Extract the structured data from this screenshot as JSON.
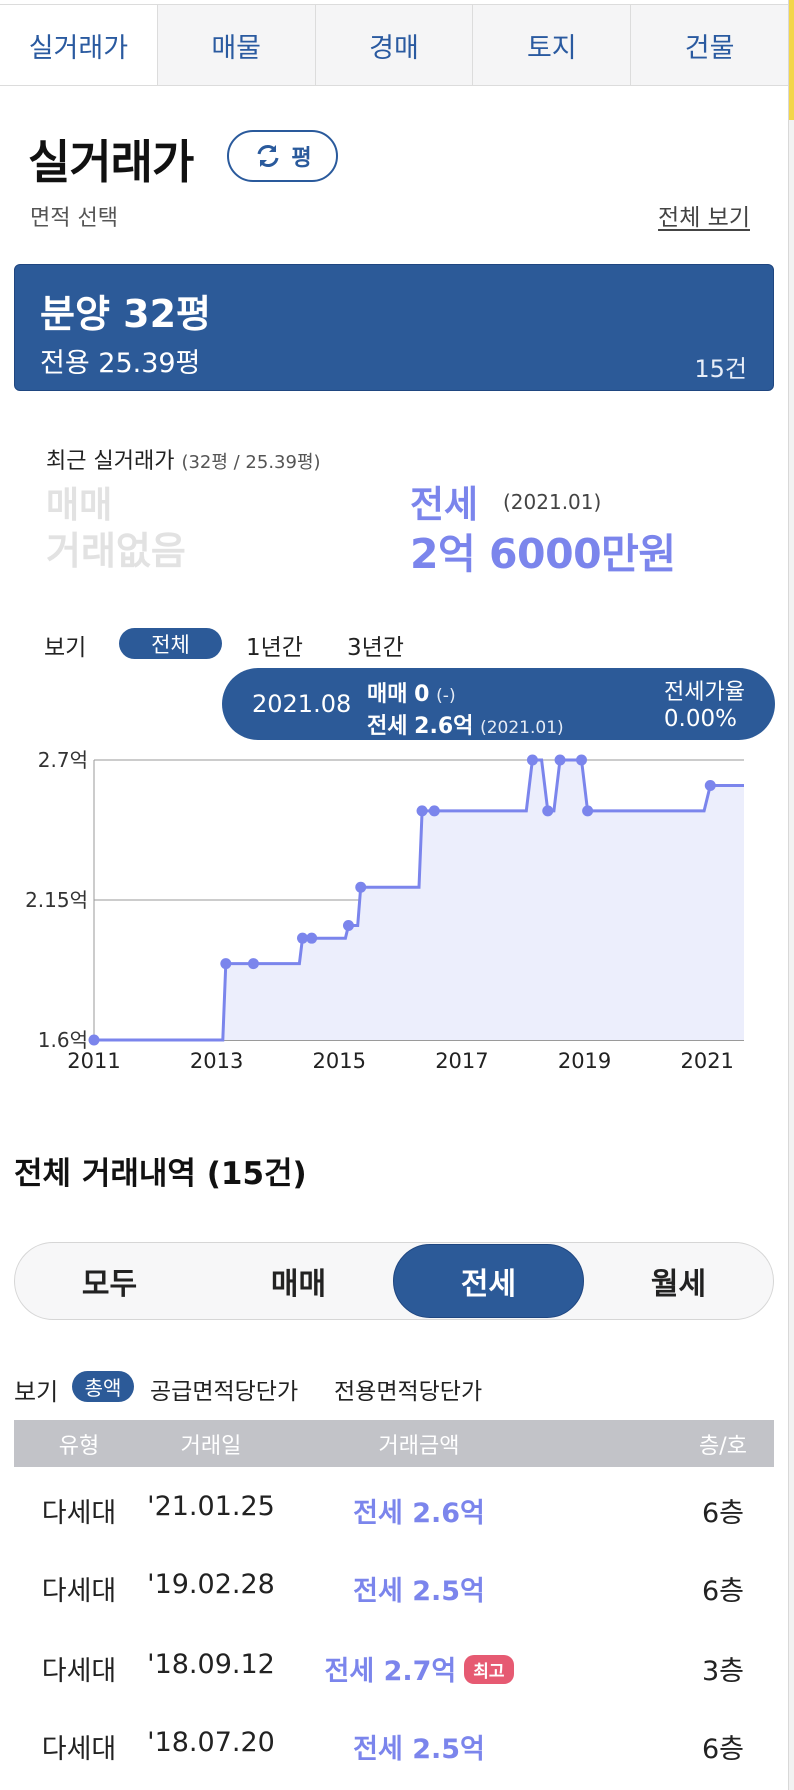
{
  "tabs": [
    "실거래가",
    "매물",
    "경매",
    "토지",
    "건물"
  ],
  "header": {
    "title": "실거래가",
    "unit_toggle": "평",
    "area_select_label": "면적 선택",
    "view_all": "전체 보기"
  },
  "area_card": {
    "main": "분양 32평",
    "sub": "전용 25.39평",
    "count": "15건"
  },
  "recent": {
    "label": "최근 실거래가",
    "area_note": "(32평 / 25.39평)",
    "sale_type": "매매",
    "sale_none": "거래없음",
    "jeonse_type": "전세",
    "jeonse_date": "(2021.01)",
    "jeonse_price": "2억 6000만원"
  },
  "period": {
    "label": "보기",
    "all": "전체",
    "one_year": "1년간",
    "three_year": "3년간"
  },
  "tooltip": {
    "date": "2021.08",
    "sale_label": "매매",
    "sale_value": "0",
    "sale_note": "(-)",
    "jeonse_label": "전세",
    "jeonse_value": "2.6억",
    "jeonse_note": "(2021.01)",
    "ratio_label": "전세가율",
    "ratio_value": "0.00%"
  },
  "chart_data": {
    "type": "area",
    "x_ticks": [
      "2011",
      "2013",
      "2015",
      "2017",
      "2019",
      "2021"
    ],
    "y_ticks": [
      "2.7억",
      "2.15억",
      "1.6억"
    ],
    "ylim": [
      1.6,
      2.7
    ],
    "xlim": [
      2011.0,
      2021.6
    ],
    "series": [
      {
        "values": [
          [
            2011.0,
            1.6
          ],
          [
            2013.1,
            1.6
          ],
          [
            2013.15,
            1.9
          ],
          [
            2013.6,
            1.9
          ],
          [
            2014.35,
            1.9
          ],
          [
            2014.4,
            2.0
          ],
          [
            2014.55,
            2.0
          ],
          [
            2015.1,
            2.0
          ],
          [
            2015.15,
            2.05
          ],
          [
            2015.3,
            2.05
          ],
          [
            2015.35,
            2.2
          ],
          [
            2016.3,
            2.2
          ],
          [
            2016.35,
            2.5
          ],
          [
            2016.55,
            2.5
          ],
          [
            2018.05,
            2.5
          ],
          [
            2018.15,
            2.7
          ],
          [
            2018.3,
            2.7
          ],
          [
            2018.4,
            2.5
          ],
          [
            2018.5,
            2.5
          ],
          [
            2018.6,
            2.7
          ],
          [
            2018.95,
            2.7
          ],
          [
            2019.05,
            2.5
          ],
          [
            2020.95,
            2.5
          ],
          [
            2021.05,
            2.6
          ],
          [
            2021.6,
            2.6
          ]
        ]
      }
    ],
    "points": [
      [
        2011.0,
        1.6
      ],
      [
        2013.15,
        1.9
      ],
      [
        2013.6,
        1.9
      ],
      [
        2014.4,
        2.0
      ],
      [
        2014.55,
        2.0
      ],
      [
        2015.15,
        2.05
      ],
      [
        2015.35,
        2.2
      ],
      [
        2016.35,
        2.5
      ],
      [
        2016.55,
        2.5
      ],
      [
        2018.15,
        2.7
      ],
      [
        2018.4,
        2.5
      ],
      [
        2018.6,
        2.7
      ],
      [
        2018.95,
        2.7
      ],
      [
        2019.05,
        2.5
      ],
      [
        2021.05,
        2.6
      ]
    ],
    "colors": {
      "line": "#7b85ec",
      "fill": "#eceefc",
      "grid": "#9a9a9a"
    }
  },
  "list": {
    "title": "전체 거래내역 (15건)",
    "filters": [
      "모두",
      "매매",
      "전세",
      "월세"
    ],
    "unit_label": "보기",
    "unit_total": "총액",
    "unit_supply": "공급면적당단가",
    "unit_exclusive": "전용면적당단가",
    "columns": [
      "유형",
      "거래일",
      "거래금액",
      "층/호"
    ],
    "rows": [
      {
        "type": "다세대",
        "date": "'21.01.25",
        "price": "전세 2.6억",
        "badge": "",
        "floor": "6층"
      },
      {
        "type": "다세대",
        "date": "'19.02.28",
        "price": "전세 2.5억",
        "badge": "",
        "floor": "6층"
      },
      {
        "type": "다세대",
        "date": "'18.09.12",
        "price": "전세 2.7억",
        "badge": "최고",
        "floor": "3층"
      },
      {
        "type": "다세대",
        "date": "'18.07.20",
        "price": "전세 2.5억",
        "badge": "",
        "floor": "6층"
      }
    ]
  }
}
